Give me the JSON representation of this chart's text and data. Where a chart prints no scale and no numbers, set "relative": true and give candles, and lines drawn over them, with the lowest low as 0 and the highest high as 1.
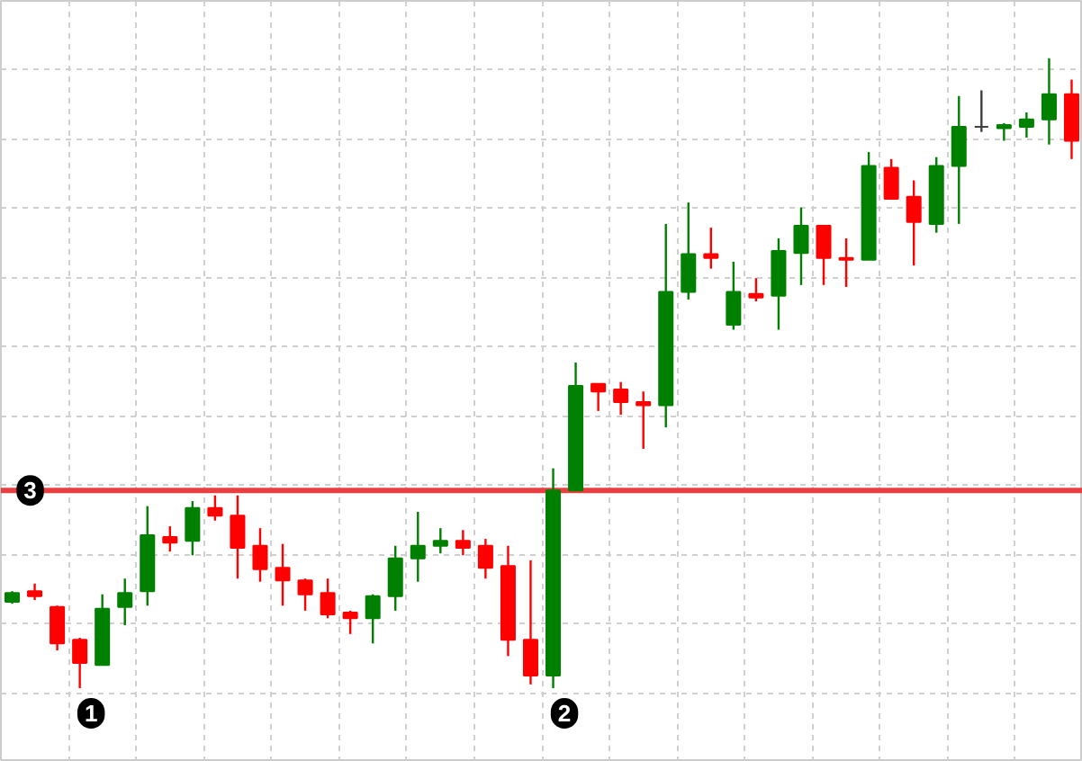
{
  "chart_data": {
    "type": "candlestick",
    "relative": true,
    "grid": true,
    "categories": [
      null,
      null,
      null,
      null,
      null,
      null,
      null,
      null,
      null,
      null,
      null,
      null,
      null,
      null,
      null,
      null,
      null,
      null,
      null,
      null,
      null,
      null,
      null,
      null,
      null,
      null,
      null,
      null,
      null,
      null,
      null,
      null,
      null,
      null,
      null,
      null,
      null,
      null,
      null,
      null,
      null,
      null,
      null,
      null,
      null,
      null,
      null,
      null
    ],
    "ohlc": [
      [
        0.137,
        0.154,
        0.134,
        0.151
      ],
      [
        0.154,
        0.166,
        0.14,
        0.146
      ],
      [
        0.129,
        0.131,
        0.06,
        0.071
      ],
      [
        0.077,
        0.08,
        0,
        0.04
      ],
      [
        0.037,
        0.149,
        0.037,
        0.126
      ],
      [
        0.129,
        0.174,
        0.1,
        0.151
      ],
      [
        0.154,
        0.289,
        0.131,
        0.243
      ],
      [
        0.24,
        0.257,
        0.217,
        0.231
      ],
      [
        0.234,
        0.297,
        0.211,
        0.286
      ],
      [
        0.286,
        0.306,
        0.266,
        0.274
      ],
      [
        0.274,
        0.306,
        0.174,
        0.223
      ],
      [
        0.226,
        0.254,
        0.169,
        0.189
      ],
      [
        0.191,
        0.229,
        0.131,
        0.171
      ],
      [
        0.171,
        0.174,
        0.123,
        0.149
      ],
      [
        0.151,
        0.174,
        0.111,
        0.117
      ],
      [
        0.12,
        0.123,
        0.086,
        0.111
      ],
      [
        0.111,
        0.149,
        0.071,
        0.146
      ],
      [
        0.146,
        0.226,
        0.123,
        0.206
      ],
      [
        0.206,
        0.28,
        0.169,
        0.226
      ],
      [
        0.226,
        0.254,
        0.214,
        0.234
      ],
      [
        0.234,
        0.251,
        0.211,
        0.223
      ],
      [
        0.226,
        0.237,
        0.174,
        0.191
      ],
      [
        0.194,
        0.226,
        0.051,
        0.077
      ],
      [
        0.077,
        0.203,
        0.006,
        0.02
      ],
      [
        0.02,
        0.349,
        0,
        0.314
      ],
      [
        0.314,
        0.517,
        0.314,
        0.48
      ],
      [
        0.483,
        0.483,
        0.44,
        0.471
      ],
      [
        0.474,
        0.486,
        0.434,
        0.454
      ],
      [
        0.454,
        0.471,
        0.38,
        0.449
      ],
      [
        0.449,
        0.737,
        0.414,
        0.629
      ],
      [
        0.629,
        0.771,
        0.617,
        0.689
      ],
      [
        0.689,
        0.731,
        0.666,
        0.683
      ],
      [
        0.577,
        0.677,
        0.569,
        0.629
      ],
      [
        0.626,
        0.651,
        0.614,
        0.62
      ],
      [
        0.623,
        0.714,
        0.569,
        0.694
      ],
      [
        0.691,
        0.763,
        0.64,
        0.734
      ],
      [
        0.734,
        0.734,
        0.64,
        0.683
      ],
      [
        0.683,
        0.714,
        0.637,
        0.68
      ],
      [
        0.68,
        0.851,
        0.68,
        0.829
      ],
      [
        0.826,
        0.84,
        0.777,
        0.777
      ],
      [
        0.78,
        0.806,
        0.671,
        0.74
      ],
      [
        0.737,
        0.843,
        0.723,
        0.829
      ],
      [
        0.829,
        0.94,
        0.737,
        0.891
      ],
      [
        0.891,
        0.949,
        0.883,
        0.891
      ],
      [
        0.889,
        0.897,
        0.869,
        0.894
      ],
      [
        0.891,
        0.914,
        0.874,
        0.903
      ],
      [
        0.903,
        1,
        0.863,
        0.943
      ],
      [
        0.943,
        0.966,
        0.84,
        0.869
      ]
    ],
    "colors": [
      "#008000",
      "#ff0000",
      "#ff0000",
      "#ff0000",
      "#008000",
      "#008000",
      "#008000",
      "#ff0000",
      "#008000",
      "#ff0000",
      "#ff0000",
      "#ff0000",
      "#ff0000",
      "#ff0000",
      "#ff0000",
      "#ff0000",
      "#008000",
      "#008000",
      "#008000",
      "#008000",
      "#ff0000",
      "#ff0000",
      "#ff0000",
      "#ff0000",
      "#008000",
      "#008000",
      "#ff0000",
      "#ff0000",
      "#ff0000",
      "#008000",
      "#008000",
      "#ff0000",
      "#008000",
      "#ff0000",
      "#008000",
      "#008000",
      "#ff0000",
      "#ff0000",
      "#008000",
      "#ff0000",
      "#ff0000",
      "#008000",
      "#008000",
      "#404040",
      "#008000",
      "#008000",
      "#008000",
      "#ff0000"
    ],
    "ref_lines": [
      {
        "axis": "y",
        "value": 0.314,
        "color": "#e84040"
      }
    ],
    "annotations": [
      "1",
      "2",
      {
        "text": "3",
        "y": 0.314
      }
    ]
  }
}
